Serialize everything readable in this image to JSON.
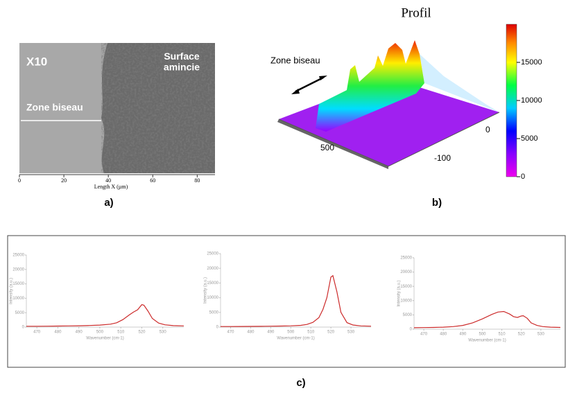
{
  "panel_a": {
    "magnification": "X10",
    "region_right": "Surface\namincie",
    "region_left": "Zone biseau",
    "xlim": [
      0,
      88
    ],
    "xticks": [
      0,
      20,
      40,
      60,
      80
    ],
    "x_label": "Length X (µm)",
    "caption": "a)"
  },
  "panel_b": {
    "title": "Profil",
    "annotation": "Zone biseau",
    "axis_ticks": [
      500,
      0,
      -100
    ],
    "colorbar_lim": [
      0,
      20000
    ],
    "colorbar_ticks": [
      0,
      5000,
      10000,
      15000
    ],
    "caption": "b)"
  },
  "chart_data": [
    {
      "type": "line",
      "x_label": "Wavenumber (cm-1)",
      "y_label": "Intensity (a.u.)",
      "x": [
        465,
        470,
        475,
        480,
        485,
        490,
        495,
        500,
        505,
        508,
        511,
        514,
        516,
        518,
        520,
        521,
        523,
        525,
        528,
        531,
        535,
        540
      ],
      "xlim": [
        465,
        540
      ],
      "xticks": [
        470,
        480,
        490,
        500,
        510,
        520,
        530
      ],
      "ylim": [
        0,
        25000
      ],
      "yticks": [
        0,
        5000,
        10000,
        15000,
        20000,
        25000
      ],
      "series": [
        {
          "color": "#cc2a2a",
          "values": [
            300,
            300,
            320,
            350,
            400,
            450,
            550,
            700,
            1000,
            1500,
            2600,
            4200,
            5200,
            6000,
            7800,
            7600,
            5500,
            3000,
            1400,
            800,
            500,
            400
          ]
        }
      ]
    },
    {
      "type": "line",
      "x_label": "Wavenumber (cm-1)",
      "y_label": "Intensity (a.u.)",
      "x": [
        465,
        470,
        475,
        480,
        485,
        490,
        495,
        500,
        505,
        508,
        511,
        514,
        516,
        518,
        520,
        521,
        523,
        525,
        528,
        531,
        535,
        540
      ],
      "xlim": [
        465,
        540
      ],
      "xticks": [
        470,
        480,
        490,
        500,
        510,
        520,
        530
      ],
      "ylim": [
        0,
        25000
      ],
      "yticks": [
        0,
        5000,
        10000,
        15000,
        20000,
        25000
      ],
      "series": [
        {
          "color": "#cc2a2a",
          "values": [
            200,
            200,
            220,
            240,
            260,
            300,
            350,
            420,
            600,
            900,
            1600,
            3200,
            6000,
            10000,
            17000,
            17500,
            12000,
            5000,
            1500,
            700,
            400,
            300
          ]
        }
      ]
    },
    {
      "type": "line",
      "x_label": "Wavenumber (cm-1)",
      "y_label": "Intensity (a.u.)",
      "x": [
        465,
        470,
        475,
        480,
        485,
        490,
        495,
        500,
        505,
        508,
        511,
        514,
        516,
        518,
        520,
        521,
        523,
        525,
        528,
        531,
        535,
        540
      ],
      "xlim": [
        465,
        540
      ],
      "xticks": [
        470,
        480,
        490,
        500,
        510,
        520,
        530
      ],
      "ylim": [
        0,
        25000
      ],
      "yticks": [
        0,
        5000,
        10000,
        15000,
        20000,
        25000
      ],
      "series": [
        {
          "color": "#cc2a2a",
          "values": [
            500,
            550,
            600,
            700,
            900,
            1300,
            2200,
            3600,
            5200,
            6000,
            6200,
            5300,
            4400,
            4100,
            4600,
            4700,
            3800,
            2200,
            1300,
            900,
            700,
            600
          ]
        }
      ]
    }
  ],
  "caption_c": "c)"
}
